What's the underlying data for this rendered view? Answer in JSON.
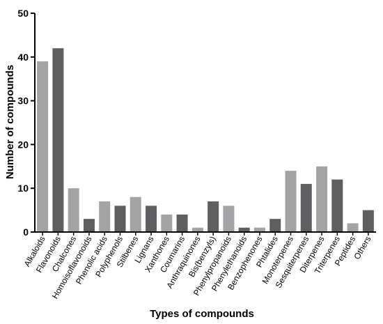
{
  "chart_data": {
    "type": "bar",
    "title": "",
    "xlabel": "Types of compounds",
    "ylabel": "Number of compounds",
    "ylim": [
      0,
      50
    ],
    "yticks": [
      0,
      10,
      20,
      30,
      40,
      50
    ],
    "grid": false,
    "categories": [
      "Alkaloids",
      "Flavonoids",
      "Chalcones",
      "Homoisoflavonoids",
      "Phenolic acids",
      "Polyphenols",
      "Stilbenes",
      "Lignans",
      "Xanthones",
      "Coumarins",
      "Anthraquinones",
      "Bis(benzyls)",
      "Phenylpropanoids",
      "Phenylethanoids",
      "Benzophenones",
      "Phtalides",
      "Monoterpenes",
      "Sesquiterpenes",
      "Diterpenes",
      "Triterpenes",
      "Peptides",
      "Others"
    ],
    "values": [
      39,
      42,
      10,
      3,
      7,
      6,
      8,
      6,
      4,
      4,
      1,
      7,
      6,
      1,
      1,
      3,
      14,
      11,
      15,
      12,
      2,
      5
    ],
    "colors": {
      "light": "#a3a3a6",
      "dark": "#5f5f62",
      "axis": "#000000"
    }
  }
}
